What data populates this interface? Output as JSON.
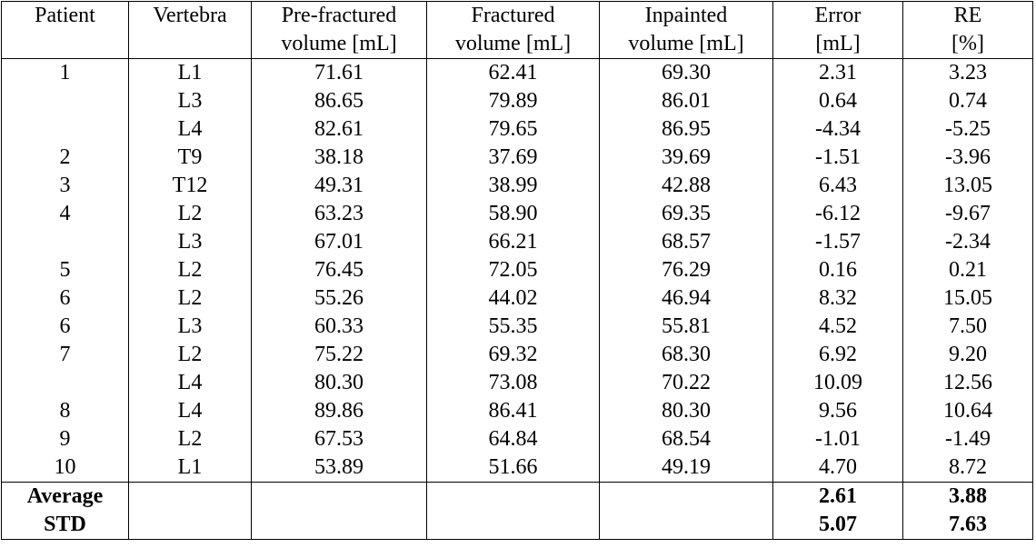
{
  "header": {
    "row1": [
      "Patient",
      "Vertebra",
      "Pre-fractured",
      "Fractured",
      "Inpainted",
      "Error",
      "RE"
    ],
    "row2": [
      "",
      "",
      "volume [mL]",
      "volume [mL]",
      "volume [mL]",
      "[mL]",
      "[%]"
    ]
  },
  "rows": [
    {
      "patient": "1",
      "vertebra": "L1",
      "pre": "71.61",
      "fractured": "62.41",
      "inpainted": "69.30",
      "error": "2.31",
      "re": "3.23"
    },
    {
      "patient": "",
      "vertebra": "L3",
      "pre": "86.65",
      "fractured": "79.89",
      "inpainted": "86.01",
      "error": "0.64",
      "re": "0.74"
    },
    {
      "patient": "",
      "vertebra": "L4",
      "pre": "82.61",
      "fractured": "79.65",
      "inpainted": "86.95",
      "error": "-4.34",
      "re": "-5.25"
    },
    {
      "patient": "2",
      "vertebra": "T9",
      "pre": "38.18",
      "fractured": "37.69",
      "inpainted": "39.69",
      "error": "-1.51",
      "re": "-3.96"
    },
    {
      "patient": "3",
      "vertebra": "T12",
      "pre": "49.31",
      "fractured": "38.99",
      "inpainted": "42.88",
      "error": "6.43",
      "re": "13.05"
    },
    {
      "patient": "4",
      "vertebra": "L2",
      "pre": "63.23",
      "fractured": "58.90",
      "inpainted": "69.35",
      "error": "-6.12",
      "re": "-9.67"
    },
    {
      "patient": "",
      "vertebra": "L3",
      "pre": "67.01",
      "fractured": "66.21",
      "inpainted": "68.57",
      "error": "-1.57",
      "re": "-2.34"
    },
    {
      "patient": "5",
      "vertebra": "L2",
      "pre": "76.45",
      "fractured": "72.05",
      "inpainted": "76.29",
      "error": "0.16",
      "re": "0.21"
    },
    {
      "patient": "6",
      "vertebra": "L2",
      "pre": "55.26",
      "fractured": "44.02",
      "inpainted": "46.94",
      "error": "8.32",
      "re": "15.05"
    },
    {
      "patient": "6",
      "vertebra": "L3",
      "pre": "60.33",
      "fractured": "55.35",
      "inpainted": "55.81",
      "error": "4.52",
      "re": "7.50"
    },
    {
      "patient": "7",
      "vertebra": "L2",
      "pre": "75.22",
      "fractured": "69.32",
      "inpainted": "68.30",
      "error": "6.92",
      "re": "9.20"
    },
    {
      "patient": "",
      "vertebra": "L4",
      "pre": "80.30",
      "fractured": "73.08",
      "inpainted": "70.22",
      "error": "10.09",
      "re": "12.56"
    },
    {
      "patient": "8",
      "vertebra": "L4",
      "pre": "89.86",
      "fractured": "86.41",
      "inpainted": "80.30",
      "error": "9.56",
      "re": "10.64"
    },
    {
      "patient": "9",
      "vertebra": "L2",
      "pre": "67.53",
      "fractured": "64.84",
      "inpainted": "68.54",
      "error": "-1.01",
      "re": "-1.49"
    },
    {
      "patient": "10",
      "vertebra": "L1",
      "pre": "53.89",
      "fractured": "51.66",
      "inpainted": "49.19",
      "error": "4.70",
      "re": "8.72"
    }
  ],
  "summary": [
    {
      "label": "Average",
      "error": "2.61",
      "re": "3.88"
    },
    {
      "label": "STD",
      "error": "5.07",
      "re": "7.63"
    }
  ]
}
